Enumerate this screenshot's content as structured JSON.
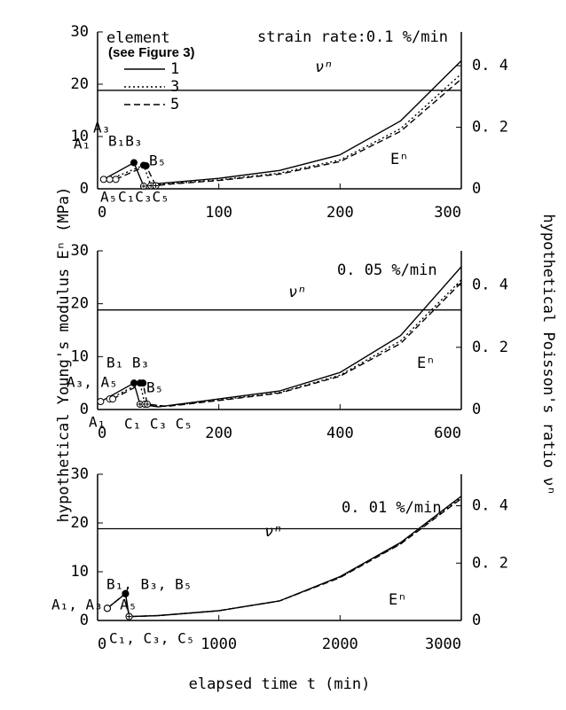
{
  "labels": {
    "y_label": "hypothetical Young's modulus Eⁿ (MPa)",
    "y2_label": "hypothetical Poisson's ratio νⁿ",
    "x_label": "elapsed time t (min)"
  },
  "chart_data": [
    {
      "type": "line",
      "title": "strain rate:0.1 %/min",
      "legend_title": "element",
      "legend_subtitle": "(see Figure 3)",
      "legend": "top-left",
      "xlim": [
        0,
        300
      ],
      "xticks": [
        0,
        100,
        200,
        300
      ],
      "ylim": [
        0,
        30
      ],
      "yticks": [
        0,
        10,
        20,
        30
      ],
      "y2lim": [
        0,
        0.51
      ],
      "y2ticks": [
        {
          "value": 0,
          "label": "0"
        },
        {
          "value": 0.2,
          "label": "0. 2"
        },
        {
          "value": 0.4,
          "label": "0. 4"
        }
      ],
      "nu_line": {
        "value": 0.32,
        "axis": "y2",
        "label": "νⁿ"
      },
      "curve_label": "Eⁿ",
      "annotations": [
        "A₁",
        "A₃",
        "B₁B₃",
        "B₅",
        "A₅",
        "C₁C₃C₅"
      ],
      "series": [
        {
          "name": "1",
          "dash": "solid",
          "color": "#000",
          "x": [
            5,
            30,
            38,
            50,
            100,
            150,
            200,
            250,
            300
          ],
          "values": [
            1.8,
            5,
            0.5,
            1,
            2,
            3.5,
            6.5,
            13,
            24.5
          ]
        },
        {
          "name": "3",
          "dash": "dotted",
          "color": "#000",
          "x": [
            10,
            38,
            44,
            55,
            100,
            150,
            200,
            250,
            300
          ],
          "values": [
            1.8,
            4.5,
            0.6,
            0.9,
            1.7,
            3,
            5.5,
            11.5,
            22
          ]
        },
        {
          "name": "5",
          "dash": "dashed",
          "color": "#000",
          "x": [
            15,
            40,
            48,
            60,
            100,
            150,
            200,
            250,
            300
          ],
          "values": [
            1.8,
            4.4,
            0.6,
            0.9,
            1.6,
            2.8,
            5.2,
            11,
            21
          ]
        }
      ]
    },
    {
      "type": "line",
      "title": "0. 05 %/min",
      "xlim": [
        0,
        600
      ],
      "xticks": [
        0,
        200,
        400,
        600
      ],
      "ylim": [
        0,
        30
      ],
      "yticks": [
        0,
        10,
        20,
        30
      ],
      "y2lim": [
        0,
        0.51
      ],
      "y2ticks": [
        {
          "value": 0,
          "label": "0"
        },
        {
          "value": 0.2,
          "label": "0. 2"
        },
        {
          "value": 0.4,
          "label": "0. 4"
        }
      ],
      "nu_line": {
        "value": 0.32,
        "axis": "y2",
        "label": "νⁿ"
      },
      "curve_label": "Eⁿ",
      "annotations": [
        "B₁ B₃",
        "A₃, A₅",
        "B₅",
        "A₁",
        "C₁ C₃ C₅"
      ],
      "series": [
        {
          "name": "1",
          "dash": "solid",
          "color": "#000",
          "x": [
            5,
            60,
            70,
            100,
            200,
            300,
            400,
            500,
            600
          ],
          "values": [
            1.5,
            5,
            1,
            0.5,
            2,
            3.5,
            7,
            14,
            27
          ]
        },
        {
          "name": "3",
          "dash": "dotted",
          "color": "#000",
          "x": [
            20,
            70,
            78,
            110,
            200,
            300,
            400,
            500,
            600
          ],
          "values": [
            2,
            5,
            1,
            0.6,
            1.8,
            3.2,
            6.5,
            13,
            24.5
          ]
        },
        {
          "name": "5",
          "dash": "dashed",
          "color": "#000",
          "x": [
            25,
            75,
            82,
            115,
            200,
            300,
            400,
            500,
            600
          ],
          "values": [
            2,
            5,
            1,
            0.6,
            1.7,
            3.1,
            6.3,
            12.5,
            24
          ]
        }
      ]
    },
    {
      "type": "line",
      "title": "0. 01 %/min",
      "xlim": [
        0,
        3000
      ],
      "xticks": [
        0,
        1000,
        2000,
        3000
      ],
      "ylim": [
        0,
        30
      ],
      "yticks": [
        0,
        10,
        20,
        30
      ],
      "y2lim": [
        0,
        0.51
      ],
      "y2ticks": [
        {
          "value": 0,
          "label": "0"
        },
        {
          "value": 0.2,
          "label": "0. 2"
        },
        {
          "value": 0.4,
          "label": "0. 4"
        }
      ],
      "nu_line": {
        "value": 0.32,
        "axis": "y2",
        "label": "νⁿ"
      },
      "curve_label": "Eⁿ",
      "annotations": [
        "B₁, B₃, B₅",
        "A₁, A₃, A₅",
        "C₁, C₃, C₅"
      ],
      "series": [
        {
          "name": "1",
          "dash": "solid",
          "color": "#000",
          "x": [
            80,
            230,
            260,
            500,
            1000,
            1500,
            2000,
            2500,
            3000
          ],
          "values": [
            2.5,
            5.5,
            0.8,
            1,
            2,
            4,
            9,
            16,
            25.5
          ]
        },
        {
          "name": "3",
          "dash": "dotted",
          "color": "#000",
          "x": [
            80,
            230,
            260,
            500,
            1000,
            1500,
            2000,
            2500,
            3000
          ],
          "values": [
            2.5,
            5.5,
            0.8,
            1,
            2,
            4,
            8.9,
            15.8,
            25.2
          ]
        },
        {
          "name": "5",
          "dash": "dashed",
          "color": "#000",
          "x": [
            80,
            230,
            260,
            500,
            1000,
            1500,
            2000,
            2500,
            3000
          ],
          "values": [
            2.5,
            5.5,
            0.8,
            1,
            2,
            4,
            8.8,
            15.7,
            25
          ]
        }
      ]
    }
  ]
}
